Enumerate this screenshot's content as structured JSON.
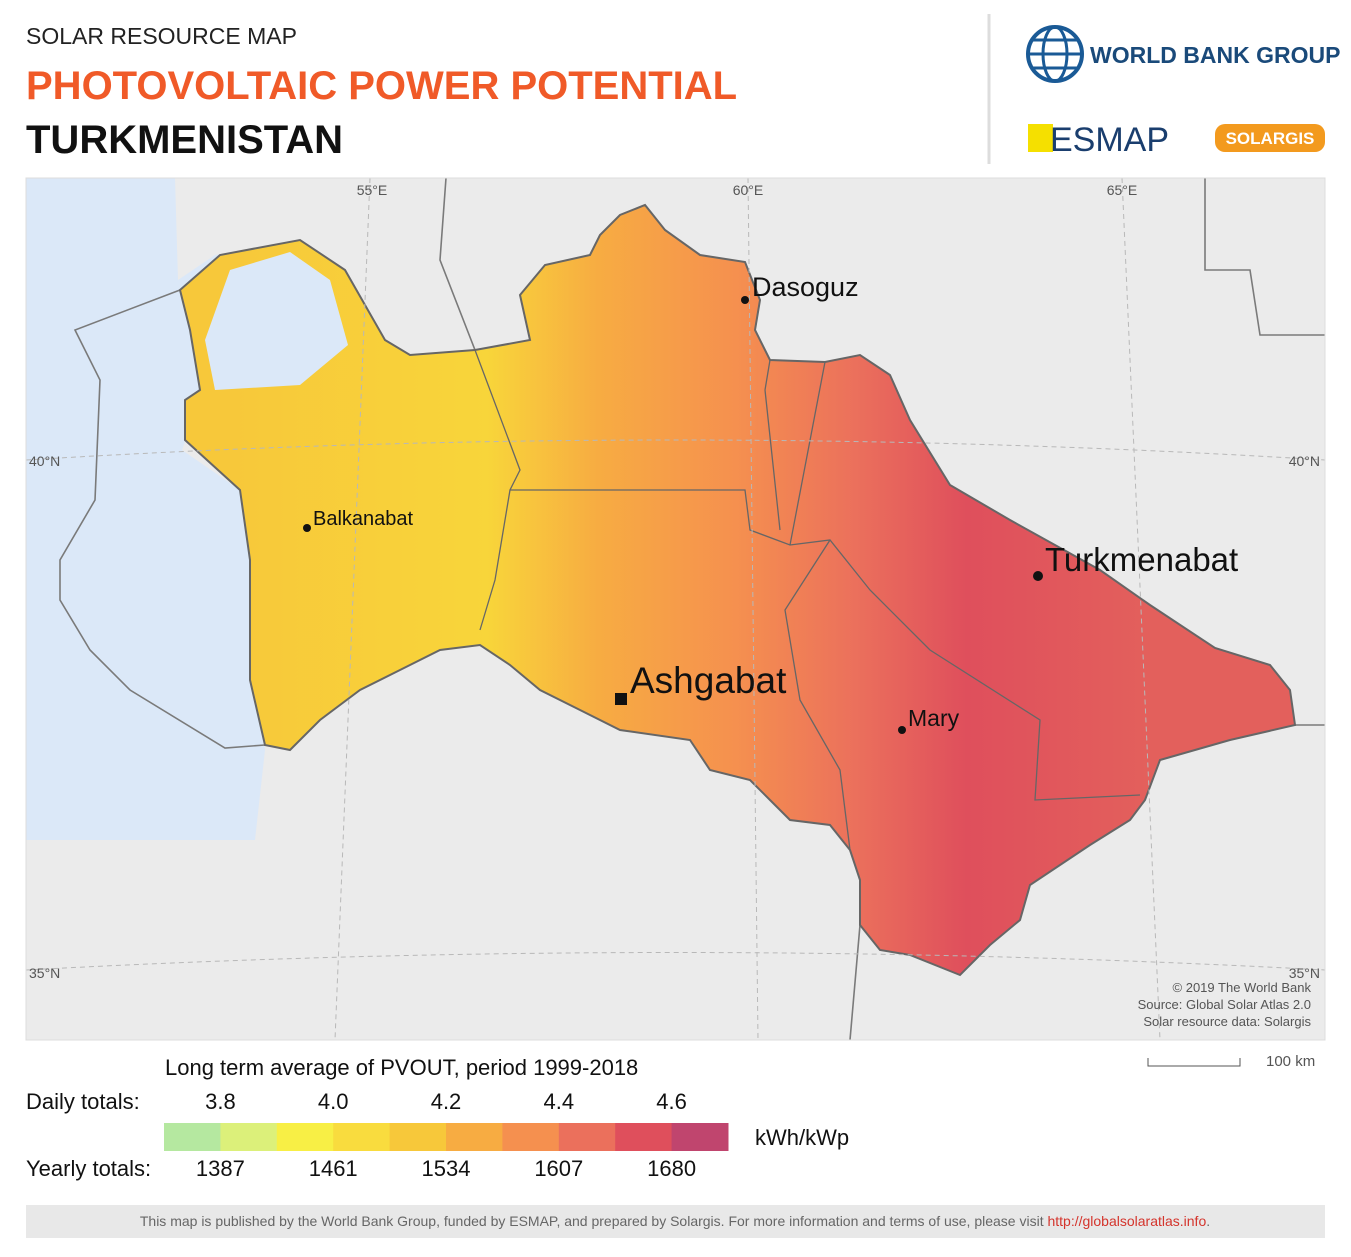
{
  "header": {
    "subtitle": "SOLAR RESOURCE MAP",
    "title": "PHOTOVOLTAIC POWER POTENTIAL",
    "country": "TURKMENISTAN"
  },
  "logos": {
    "world_bank": "WORLD BANK GROUP",
    "esmap": "ESMAP",
    "solargis": "SOLARGIS"
  },
  "map": {
    "longitudes": [
      "55°E",
      "60°E",
      "65°E"
    ],
    "latitudes": [
      "40°N",
      "35°N"
    ],
    "cities": [
      "Dasoguz",
      "Balkanabat",
      "Turkmenabat",
      "Ashgabat",
      "Mary"
    ],
    "credits": [
      "© 2019 The World Bank",
      "Source: Global Solar Atlas 2.0",
      "Solar resource data: Solargis"
    ],
    "scale": "100 km"
  },
  "legend": {
    "title": "Long term average of PVOUT, period 1999-2018",
    "daily_label": "Daily totals:",
    "daily": [
      "3.8",
      "4.0",
      "4.2",
      "4.4",
      "4.6"
    ],
    "yearly_label": "Yearly totals:",
    "yearly": [
      "1387",
      "1461",
      "1534",
      "1607",
      "1680"
    ],
    "unit": "kWh/kWp",
    "colors": [
      "#b5e8a0",
      "#dcf07a",
      "#f8ef45",
      "#f9dc3e",
      "#f7c83a",
      "#f7ac42",
      "#f5904f",
      "#eb705c",
      "#df4f5c",
      "#c0456e"
    ]
  },
  "footer": {
    "text": "This map is published by the World Bank Group, funded by ESMAP, and prepared by Solargis. For more information and terms of use, please visit ",
    "link": "http://globalsolaratlas.info",
    "end": "."
  }
}
